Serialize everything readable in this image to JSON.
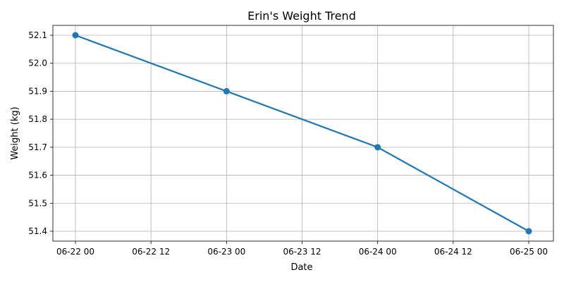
{
  "chart_data": {
    "type": "line",
    "title": "Erin's Weight Trend",
    "xlabel": "Date",
    "ylabel": "Weight (kg)",
    "grid": true,
    "x_tick_labels": [
      "06-22 00",
      "06-22 12",
      "06-23 00",
      "06-23 12",
      "06-24 00",
      "06-24 12",
      "06-25 00"
    ],
    "y_tick_labels": [
      "51.4",
      "51.5",
      "51.6",
      "51.7",
      "51.8",
      "51.9",
      "52.0",
      "52.1"
    ],
    "y_ticks": [
      51.4,
      51.5,
      51.6,
      51.7,
      51.8,
      51.9,
      52.0,
      52.1
    ],
    "series": [
      {
        "color": "#1f77b4",
        "marker": "circle",
        "x": [
          "06-22 00",
          "06-23 00",
          "06-24 00",
          "06-25 00"
        ],
        "values": [
          52.1,
          51.9,
          51.7,
          51.4
        ]
      }
    ]
  }
}
